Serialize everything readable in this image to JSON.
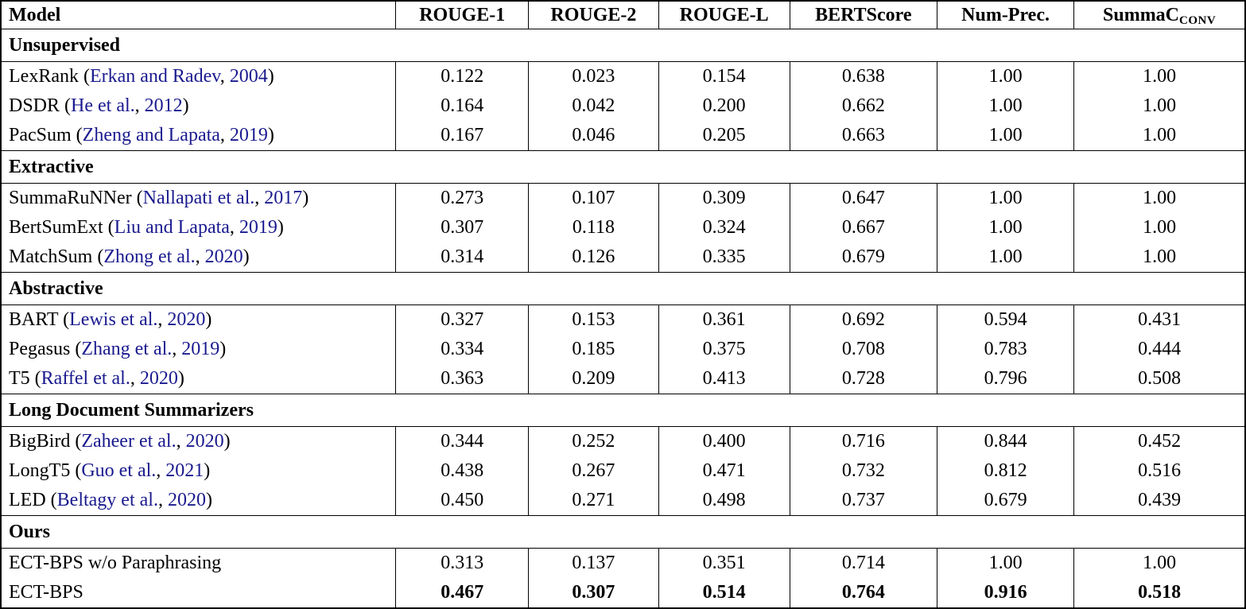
{
  "colors": {
    "citation_link": "#1a1a8f",
    "text": "#000000",
    "border": "#000000",
    "background": "#ffffff"
  },
  "header": {
    "columns": [
      "Model",
      "ROUGE-1",
      "ROUGE-2",
      "ROUGE-L",
      "BERTScore",
      "Num-Prec."
    ],
    "summac": {
      "base": "SummaC",
      "subscript": "CONV"
    }
  },
  "punctuation": {
    "open_paren": "(",
    "separator": ", ",
    "close_paren": ")"
  },
  "sections": [
    {
      "label": "Unsupervised",
      "rows": [
        {
          "model": "LexRank",
          "citation_name": "Erkan and Radev",
          "citation_year": "2004",
          "values": [
            "0.122",
            "0.023",
            "0.154",
            "0.638",
            "1.00",
            "1.00"
          ],
          "bold_values": false
        },
        {
          "model": "DSDR",
          "citation_name": "He et al.",
          "citation_year": "2012",
          "values": [
            "0.164",
            "0.042",
            "0.200",
            "0.662",
            "1.00",
            "1.00"
          ],
          "bold_values": false
        },
        {
          "model": "PacSum",
          "citation_name": "Zheng and Lapata",
          "citation_year": "2019",
          "values": [
            "0.167",
            "0.046",
            "0.205",
            "0.663",
            "1.00",
            "1.00"
          ],
          "bold_values": false
        }
      ]
    },
    {
      "label": "Extractive",
      "rows": [
        {
          "model": "SummaRuNNer",
          "citation_name": "Nallapati et al.",
          "citation_year": "2017",
          "values": [
            "0.273",
            "0.107",
            "0.309",
            "0.647",
            "1.00",
            "1.00"
          ],
          "bold_values": false
        },
        {
          "model": "BertSumExt",
          "citation_name": "Liu and Lapata",
          "citation_year": "2019",
          "values": [
            "0.307",
            "0.118",
            "0.324",
            "0.667",
            "1.00",
            "1.00"
          ],
          "bold_values": false
        },
        {
          "model": "MatchSum",
          "citation_name": "Zhong et al.",
          "citation_year": "2020",
          "values": [
            "0.314",
            "0.126",
            "0.335",
            "0.679",
            "1.00",
            "1.00"
          ],
          "bold_values": false
        }
      ]
    },
    {
      "label": "Abstractive",
      "rows": [
        {
          "model": "BART",
          "citation_name": "Lewis et al.",
          "citation_year": "2020",
          "values": [
            "0.327",
            "0.153",
            "0.361",
            "0.692",
            "0.594",
            "0.431"
          ],
          "bold_values": false
        },
        {
          "model": "Pegasus",
          "citation_name": "Zhang et al.",
          "citation_year": "2019",
          "values": [
            "0.334",
            "0.185",
            "0.375",
            "0.708",
            "0.783",
            "0.444"
          ],
          "bold_values": false
        },
        {
          "model": "T5",
          "citation_name": "Raffel et al.",
          "citation_year": "2020",
          "values": [
            "0.363",
            "0.209",
            "0.413",
            "0.728",
            "0.796",
            "0.508"
          ],
          "bold_values": false
        }
      ]
    },
    {
      "label": "Long Document Summarizers",
      "rows": [
        {
          "model": "BigBird",
          "citation_name": "Zaheer et al.",
          "citation_year": "2020",
          "values": [
            "0.344",
            "0.252",
            "0.400",
            "0.716",
            "0.844",
            "0.452"
          ],
          "bold_values": false
        },
        {
          "model": "LongT5",
          "citation_name": "Guo et al.",
          "citation_year": "2021",
          "values": [
            "0.438",
            "0.267",
            "0.471",
            "0.732",
            "0.812",
            "0.516"
          ],
          "bold_values": false
        },
        {
          "model": "LED",
          "citation_name": "Beltagy et al.",
          "citation_year": "2020",
          "values": [
            "0.450",
            "0.271",
            "0.498",
            "0.737",
            "0.679",
            "0.439"
          ],
          "bold_values": false
        }
      ]
    },
    {
      "label": "Ours",
      "rows": [
        {
          "model": "ECT-BPS w/o Paraphrasing",
          "citation_name": null,
          "citation_year": null,
          "values": [
            "0.313",
            "0.137",
            "0.351",
            "0.714",
            "1.00",
            "1.00"
          ],
          "bold_values": false
        },
        {
          "model": "ECT-BPS",
          "citation_name": null,
          "citation_year": null,
          "values": [
            "0.467",
            "0.307",
            "0.514",
            "0.764",
            "0.916",
            "0.518"
          ],
          "bold_values": true
        }
      ]
    }
  ]
}
